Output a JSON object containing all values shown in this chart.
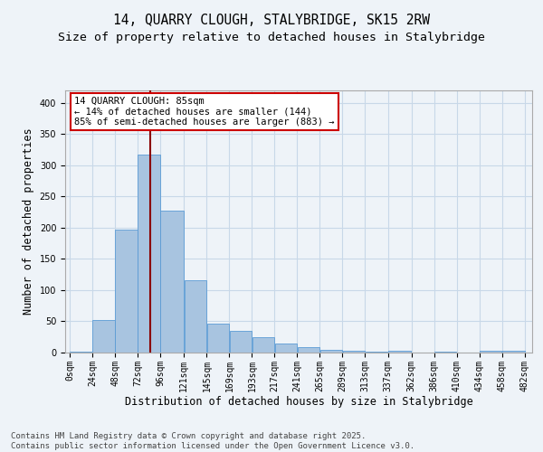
{
  "title1": "14, QUARRY CLOUGH, STALYBRIDGE, SK15 2RW",
  "title2": "Size of property relative to detached houses in Stalybridge",
  "xlabel": "Distribution of detached houses by size in Stalybridge",
  "ylabel": "Number of detached properties",
  "bar_left_edges": [
    0,
    24,
    48,
    72,
    96,
    121,
    145,
    169,
    193,
    217,
    241,
    265,
    289,
    313,
    337,
    362,
    386,
    410,
    434,
    458
  ],
  "bar_widths": [
    24,
    24,
    24,
    24,
    25,
    24,
    24,
    24,
    24,
    24,
    24,
    24,
    24,
    24,
    25,
    24,
    24,
    24,
    24,
    24
  ],
  "bar_heights": [
    2,
    52,
    197,
    317,
    228,
    116,
    46,
    35,
    25,
    15,
    9,
    5,
    3,
    1,
    3,
    0,
    1,
    0,
    3,
    3
  ],
  "bar_color": "#a8c4e0",
  "bar_edgecolor": "#5b9bd5",
  "grid_color": "#c8d8e8",
  "background_color": "#eef3f8",
  "vline_x": 85,
  "vline_color": "#8b0000",
  "annotation_text": "14 QUARRY CLOUGH: 85sqm\n← 14% of detached houses are smaller (144)\n85% of semi-detached houses are larger (883) →",
  "annotation_box_color": "#ffffff",
  "annotation_box_edgecolor": "#cc0000",
  "tick_labels": [
    "0sqm",
    "24sqm",
    "48sqm",
    "72sqm",
    "96sqm",
    "121sqm",
    "145sqm",
    "169sqm",
    "193sqm",
    "217sqm",
    "241sqm",
    "265sqm",
    "289sqm",
    "313sqm",
    "337sqm",
    "362sqm",
    "386sqm",
    "410sqm",
    "434sqm",
    "458sqm",
    "482sqm"
  ],
  "tick_positions": [
    0,
    24,
    48,
    72,
    96,
    121,
    145,
    169,
    193,
    217,
    241,
    265,
    289,
    313,
    337,
    362,
    386,
    410,
    434,
    458,
    482
  ],
  "ylim": [
    0,
    420
  ],
  "yticks": [
    0,
    50,
    100,
    150,
    200,
    250,
    300,
    350,
    400
  ],
  "footnote": "Contains HM Land Registry data © Crown copyright and database right 2025.\nContains public sector information licensed under the Open Government Licence v3.0.",
  "title_fontsize": 10.5,
  "subtitle_fontsize": 9.5,
  "axis_label_fontsize": 8.5,
  "tick_fontsize": 7,
  "annotation_fontsize": 7.5,
  "footnote_fontsize": 6.5
}
